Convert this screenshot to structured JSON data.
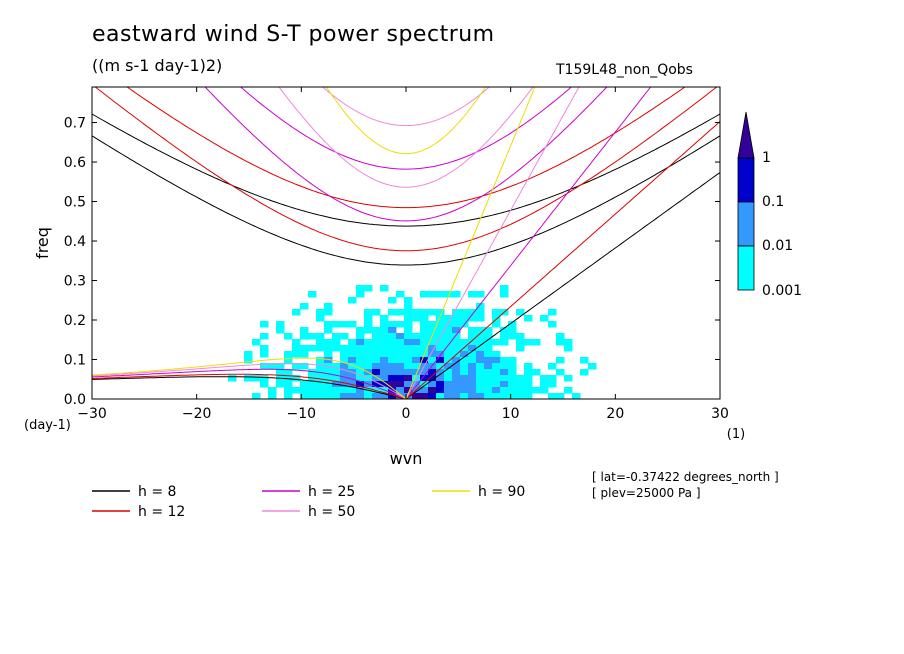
{
  "header": {
    "title": "eastward wind S-T power spectrum",
    "units": "((m s-1 day-1)2)",
    "run": "T159L48_non_Qobs"
  },
  "info": {
    "lat": "[ lat=-0.37422 degrees_north ]",
    "plev": "[ plev=25000 Pa ]"
  },
  "chart_data": {
    "type": "heatmap",
    "title": "eastward wind S-T power spectrum",
    "subtitle": "((m s-1 day-1)2)",
    "xlabel": "wvn",
    "ylabel": "freq",
    "x_unit": "(1)",
    "y_unit": "(day-1)",
    "xlim": [
      -30,
      30
    ],
    "ylim": [
      0,
      0.79
    ],
    "xticks": [
      -30,
      -20,
      -10,
      0,
      10,
      20,
      30
    ],
    "yticks": [
      0,
      0.1,
      0.2,
      0.3,
      0.4,
      0.5,
      0.6,
      0.7
    ],
    "ytick_labels": [
      "0.0",
      "0.1",
      "0.2",
      "0.3",
      "0.4",
      "0.5",
      "0.6",
      "0.7"
    ],
    "colorbar": {
      "levels": [
        0.001,
        0.01,
        0.1,
        1
      ],
      "labels": [
        "0.001",
        "0.01",
        "0.1",
        "1"
      ],
      "colors": [
        "#00ffff",
        "#3399ff",
        "#0000cc",
        "#330099"
      ]
    },
    "dispersion_curves": [
      {
        "name": "h =  8",
        "h": 8,
        "color": "#000000"
      },
      {
        "name": "h = 12",
        "h": 12,
        "color": "#dd0000"
      },
      {
        "name": "h = 25",
        "h": 25,
        "color": "#cc00cc"
      },
      {
        "name": "h = 50",
        "h": 50,
        "color": "#ee88dd"
      },
      {
        "name": "h = 90",
        "h": 90,
        "color": "#eedd00"
      }
    ]
  }
}
